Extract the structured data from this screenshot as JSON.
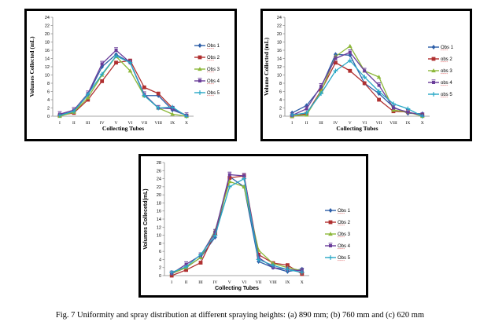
{
  "caption": "Fig. 7 Uniformity and spray distribution at different spraying heights: (a) 890 mm; (b) 760 mm and (c) 620 mm",
  "colors": {
    "s1": "#2E5FA8",
    "s2": "#B03030",
    "s3": "#8DB83A",
    "s4": "#6A3D9A",
    "s5": "#29A8C6"
  },
  "chart_data": [
    {
      "type": "line",
      "panel": "a",
      "title": "",
      "xlabel": "Collecting Tubes",
      "ylabel": "Volumes Collected (mL)",
      "categories": [
        "I",
        "II",
        "III",
        "IV",
        "V",
        "VI",
        "VII",
        "VIII",
        "IX",
        "X"
      ],
      "ylim": [
        0,
        24
      ],
      "yticks": [
        0,
        2,
        4,
        6,
        8,
        10,
        12,
        14,
        16,
        18,
        20,
        22,
        24
      ],
      "legend": "right",
      "series": [
        {
          "name": "Obs 1",
          "color": "#2E5FA8",
          "marker": "diamond",
          "values": [
            0.3,
            1.2,
            5.2,
            12,
            15,
            13,
            5,
            5,
            1.5,
            0.2
          ]
        },
        {
          "name": "Obs 2",
          "color": "#B03030",
          "marker": "square",
          "values": [
            0.2,
            0.8,
            4,
            8.5,
            13,
            13.5,
            7,
            5.5,
            2,
            0.1
          ]
        },
        {
          "name": "Obs 3",
          "color": "#8DB83A",
          "marker": "triangle",
          "values": [
            0,
            1,
            4.5,
            10,
            14.5,
            11,
            5,
            2,
            0.5,
            0
          ]
        },
        {
          "name": "Obs 4",
          "color": "#6A3D9A",
          "marker": "x",
          "values": [
            0.5,
            1.5,
            5.5,
            12.7,
            16,
            13,
            5.3,
            2,
            1.8,
            0.2
          ]
        },
        {
          "name": "Obs 5",
          "color": "#29A8C6",
          "marker": "star",
          "values": [
            0.2,
            1.2,
            5.3,
            10.2,
            14.6,
            13,
            5,
            2,
            2.2,
            0
          ]
        }
      ]
    },
    {
      "type": "line",
      "panel": "b",
      "title": "",
      "xlabel": "Collecting Tubes",
      "ylabel": "Volume Collected (mL)",
      "categories": [
        "I",
        "II",
        "III",
        "IV",
        "V",
        "VI",
        "VII",
        "VIII",
        "IX",
        "X"
      ],
      "ylim": [
        0,
        24
      ],
      "yticks": [
        0,
        2,
        4,
        6,
        8,
        10,
        12,
        14,
        16,
        18,
        20,
        22,
        24
      ],
      "legend": "right",
      "series": [
        {
          "name": "Obs 1",
          "color": "#2E5FA8",
          "marker": "diamond",
          "values": [
            0.8,
            2.6,
            7,
            15,
            14.8,
            8,
            5.5,
            2.2,
            0.7,
            0.6
          ]
        },
        {
          "name": "obs 2",
          "color": "#B03030",
          "marker": "square",
          "values": [
            0,
            0.6,
            6.2,
            13,
            11,
            8,
            4,
            1.2,
            1,
            0.2
          ]
        },
        {
          "name": "obs 3",
          "color": "#8DB83A",
          "marker": "triangle",
          "values": [
            0,
            0.3,
            6,
            14.5,
            17,
            11,
            9.5,
            1.5,
            1,
            0
          ]
        },
        {
          "name": "obs 4",
          "color": "#6A3D9A",
          "marker": "x",
          "values": [
            0.2,
            1.8,
            7.3,
            14,
            15.5,
            11,
            7.5,
            2,
            1,
            0.2
          ]
        },
        {
          "name": "obs 5",
          "color": "#29A8C6",
          "marker": "star",
          "values": [
            0.3,
            0.8,
            5.5,
            11,
            13.5,
            9.5,
            6,
            3,
            1.8,
            0
          ]
        }
      ]
    },
    {
      "type": "line",
      "panel": "c",
      "title": "",
      "xlabel": "Collecting Tubes",
      "ylabel": "Volumes Collecetd(mL)",
      "categories": [
        "I",
        "II",
        "III",
        "IV",
        "V",
        "VI",
        "VII",
        "VIII",
        "IX",
        "X"
      ],
      "ylim": [
        0,
        28
      ],
      "yticks": [
        0,
        2,
        4,
        6,
        8,
        10,
        12,
        14,
        16,
        18,
        20,
        22,
        24,
        26,
        28
      ],
      "legend": "right",
      "series": [
        {
          "name": "Obs 1",
          "color": "#2E5FA8",
          "marker": "diamond",
          "values": [
            0.5,
            2,
            4.5,
            9.5,
            24.5,
            22,
            3.5,
            2,
            1,
            1.6
          ]
        },
        {
          "name": "Obs 2",
          "color": "#B03030",
          "marker": "square",
          "values": [
            0,
            1.4,
            3.2,
            10.5,
            24.2,
            24.7,
            5.2,
            3.1,
            2.6,
            0.4
          ]
        },
        {
          "name": "Obs 3",
          "color": "#8DB83A",
          "marker": "triangle",
          "values": [
            0.5,
            2,
            4.5,
            11.2,
            23.3,
            22,
            6.3,
            3,
            2,
            1.2
          ]
        },
        {
          "name": "Obs 4",
          "color": "#6A3D9A",
          "marker": "x",
          "values": [
            0.5,
            2.8,
            5,
            10.8,
            25,
            24.7,
            4.5,
            2,
            1.5,
            1.2
          ]
        },
        {
          "name": "Obs 5",
          "color": "#29A8C6",
          "marker": "star",
          "values": [
            0.8,
            2.2,
            5.2,
            10,
            22,
            24,
            4,
            2.5,
            1.5,
            0.8
          ]
        }
      ]
    }
  ]
}
